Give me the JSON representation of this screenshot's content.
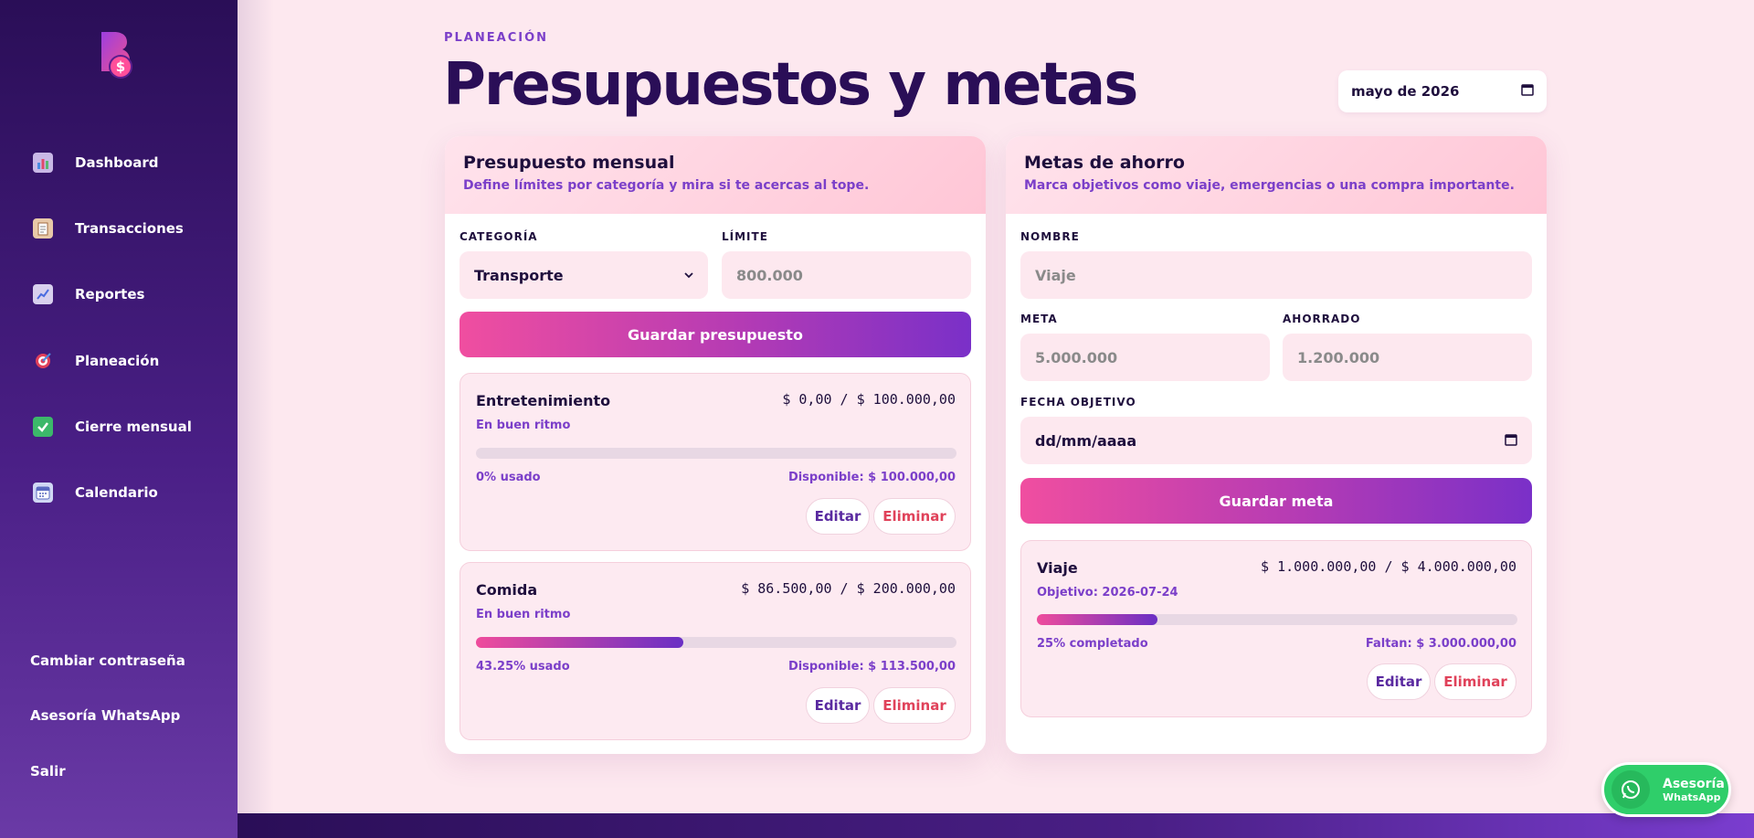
{
  "sidebar": {
    "nav": [
      {
        "label": "Dashboard",
        "icon": "bar-chart-icon"
      },
      {
        "label": "Transacciones",
        "icon": "clipboard-icon"
      },
      {
        "label": "Reportes",
        "icon": "trend-chart-icon"
      },
      {
        "label": "Planeación",
        "icon": "target-icon"
      },
      {
        "label": "Cierre mensual",
        "icon": "check-icon"
      },
      {
        "label": "Calendario",
        "icon": "calendar-icon"
      }
    ],
    "links": [
      "Cambiar contraseña",
      "Asesoría WhatsApp",
      "Salir"
    ]
  },
  "header": {
    "eyebrow": "PLANEACIÓN",
    "title": "Presupuestos y metas",
    "month": "mayo de 2026"
  },
  "budget": {
    "title": "Presupuesto mensual",
    "subtitle": "Define límites por categoría y mira si te acercas al tope.",
    "category_label": "CATEGORÍA",
    "category_value": "Transporte",
    "limit_label": "LÍMITE",
    "limit_placeholder": "800.000",
    "save_label": "Guardar presupuesto",
    "items": [
      {
        "name": "Entretenimiento",
        "amount": "$ 0,00 / $ 100.000,00",
        "status": "En buen ritmo",
        "used_fraction": 0,
        "used": "0% usado",
        "available": "Disponible: $ 100.000,00",
        "edit": "Editar",
        "delete": "Eliminar"
      },
      {
        "name": "Comida",
        "amount": "$ 86.500,00 / $ 200.000,00",
        "status": "En buen ritmo",
        "used_fraction": 0.4325,
        "used": "43.25% usado",
        "available": "Disponible: $ 113.500,00",
        "edit": "Editar",
        "delete": "Eliminar"
      }
    ]
  },
  "goals": {
    "title": "Metas de ahorro",
    "subtitle": "Marca objetivos como viaje, emergencias o una compra importante.",
    "name_label": "NOMBRE",
    "name_placeholder": "Viaje",
    "goal_label": "META",
    "goal_placeholder": "5.000.000",
    "saved_label": "AHORRADO",
    "saved_placeholder": "1.200.000",
    "date_label": "FECHA OBJETIVO",
    "date_placeholder": "dd/mm/aaaa",
    "save_label": "Guardar meta",
    "items": [
      {
        "name": "Viaje",
        "amount": "$ 1.000.000,00 / $ 4.000.000,00",
        "target": "Objetivo: 2026-07-24",
        "progress_fraction": 0.25,
        "progress": "25% completado",
        "remaining": "Faltan: $ 3.000.000,00",
        "edit": "Editar",
        "delete": "Eliminar"
      }
    ]
  },
  "whatsapp": {
    "line1": "Asesoría",
    "line2": "WhatsApp"
  },
  "colors": {
    "accent": "#7b3fc9",
    "brand_dark": "#2a0e57",
    "danger": "#e0425a",
    "whatsapp": "#2fce6a"
  }
}
